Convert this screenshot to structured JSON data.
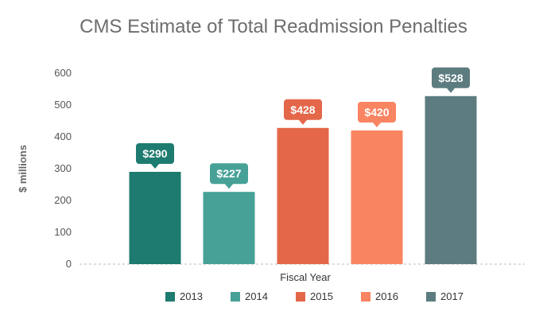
{
  "chart_data": {
    "type": "bar",
    "title": "CMS Estimate of Total Readmission Penalties",
    "xlabel": "Fiscal Year",
    "ylabel": "$ millions",
    "ylim": [
      0,
      600
    ],
    "yticks": [
      0,
      100,
      200,
      300,
      400,
      500,
      600
    ],
    "grid": false,
    "legend_position": "bottom",
    "categories": [
      "2013",
      "2014",
      "2015",
      "2016",
      "2017"
    ],
    "values": [
      290,
      227,
      428,
      420,
      528
    ],
    "data_labels": [
      "$290",
      "$227",
      "$428",
      "$420",
      "$528"
    ],
    "colors": [
      "#1e7b6f",
      "#47a197",
      "#e4674a",
      "#f98462",
      "#5d7c80"
    ]
  }
}
